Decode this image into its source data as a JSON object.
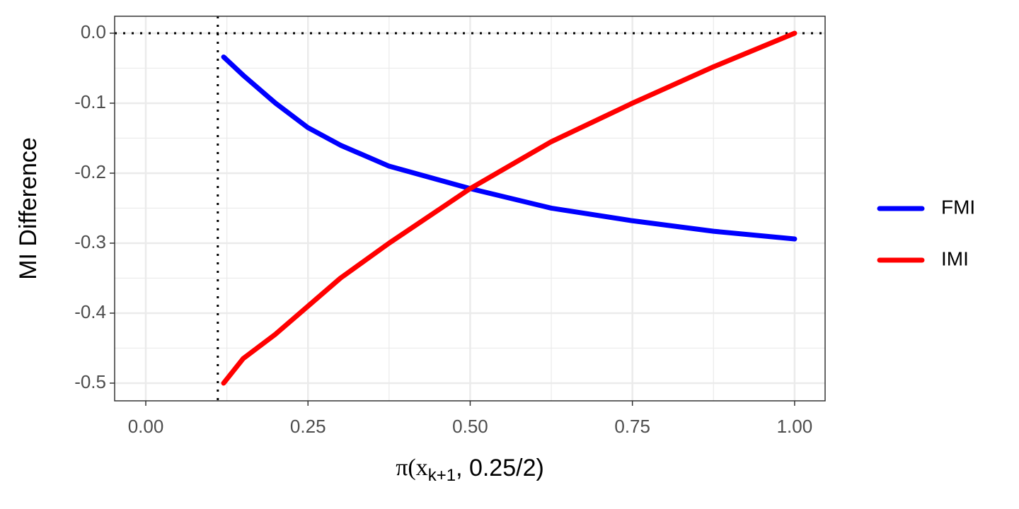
{
  "chart_data": {
    "type": "line",
    "xlabel": [
      "π(x",
      "k+1",
      ", 0.25/2)"
    ],
    "ylabel": "MI  Difference",
    "x": [
      0.12,
      0.15,
      0.2,
      0.25,
      0.3,
      0.375,
      0.5,
      0.625,
      0.75,
      0.875,
      1.0
    ],
    "series": [
      {
        "name": "FMI",
        "color": "#0000ff",
        "values": [
          -0.034,
          -0.06,
          -0.1,
          -0.135,
          -0.16,
          -0.19,
          -0.222,
          -0.25,
          -0.268,
          -0.283,
          -0.294
        ]
      },
      {
        "name": "IMI",
        "color": "#ff0000",
        "values": [
          -0.5,
          -0.465,
          -0.43,
          -0.39,
          -0.35,
          -0.3,
          -0.222,
          -0.155,
          -0.1,
          -0.048,
          0
        ]
      }
    ],
    "xlim": [
      -0.048,
      1.047
    ],
    "ylim": [
      -0.5253,
      0.0242
    ],
    "xticks": [
      {
        "value": 0,
        "label": "0.00"
      },
      {
        "value": 0.25,
        "label": "0.25"
      },
      {
        "value": 0.5,
        "label": "0.50"
      },
      {
        "value": 0.75,
        "label": "0.75"
      },
      {
        "value": 1,
        "label": "1.00"
      }
    ],
    "yticks": [
      {
        "value": 0,
        "label": "0.0"
      },
      {
        "value": -0.1,
        "label": "-0.1"
      },
      {
        "value": -0.2,
        "label": "-0.2"
      },
      {
        "value": -0.3,
        "label": "-0.3"
      },
      {
        "value": -0.4,
        "label": "-0.4"
      },
      {
        "value": -0.5,
        "label": "-0.5"
      }
    ],
    "hlines": [
      0
    ],
    "vlines": [
      0.111
    ],
    "grid": true,
    "legend": "right"
  }
}
